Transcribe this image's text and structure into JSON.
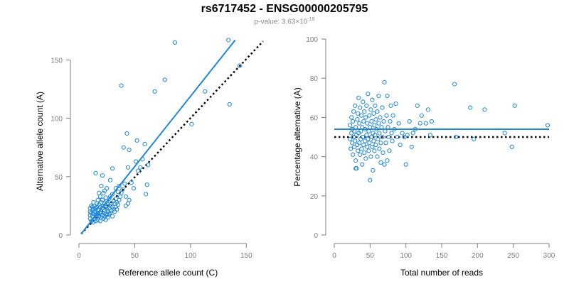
{
  "title": "rs6717452 - ENSG00000205795",
  "pvalue": {
    "prefix": "p-value: 3.63×10",
    "exponent": "-18"
  },
  "colors": {
    "points": "#1e88d8",
    "fit": "#1e88d8",
    "reference": "#000000",
    "axis": "#7f7f7f"
  },
  "chart_data": [
    {
      "type": "scatter",
      "id": "left",
      "xlabel": "Reference allele count (C)",
      "ylabel": "Alternative allele count (A)",
      "xlim": [
        0,
        160
      ],
      "ylim": [
        0,
        160
      ],
      "xticks": [
        0,
        50,
        100,
        150
      ],
      "yticks": [
        0,
        50,
        100,
        150
      ],
      "fit_line": [
        [
          2,
          1
        ],
        [
          140,
          167
        ]
      ],
      "reference_line": [
        [
          2,
          1
        ],
        [
          165,
          166
        ]
      ],
      "points": [
        [
          10,
          14
        ],
        [
          10,
          17
        ],
        [
          10,
          20
        ],
        [
          10,
          23
        ],
        [
          11,
          12
        ],
        [
          11,
          19
        ],
        [
          11,
          25
        ],
        [
          12,
          16
        ],
        [
          12,
          21
        ],
        [
          12,
          24
        ],
        [
          13,
          11
        ],
        [
          13,
          18
        ],
        [
          13,
          22
        ],
        [
          13,
          28
        ],
        [
          14,
          14
        ],
        [
          14,
          20
        ],
        [
          14,
          25
        ],
        [
          15,
          12
        ],
        [
          15,
          17
        ],
        [
          15,
          23
        ],
        [
          15,
          53
        ],
        [
          16,
          15
        ],
        [
          16,
          19
        ],
        [
          16,
          24
        ],
        [
          16,
          27
        ],
        [
          17,
          13
        ],
        [
          17,
          18
        ],
        [
          17,
          22
        ],
        [
          17,
          30
        ],
        [
          18,
          16
        ],
        [
          18,
          21
        ],
        [
          18,
          26
        ],
        [
          18,
          36
        ],
        [
          19,
          12
        ],
        [
          19,
          19
        ],
        [
          19,
          24
        ],
        [
          19,
          33
        ],
        [
          20,
          15
        ],
        [
          20,
          20
        ],
        [
          20,
          28
        ],
        [
          20,
          42
        ],
        [
          21,
          17
        ],
        [
          21,
          23
        ],
        [
          21,
          30
        ],
        [
          21,
          51
        ],
        [
          22,
          14
        ],
        [
          22,
          19
        ],
        [
          22,
          25
        ],
        [
          22,
          36
        ],
        [
          23,
          16
        ],
        [
          23,
          21
        ],
        [
          23,
          27
        ],
        [
          23,
          38
        ],
        [
          24,
          13
        ],
        [
          24,
          18
        ],
        [
          24,
          24
        ],
        [
          24,
          32
        ],
        [
          25,
          17
        ],
        [
          25,
          22
        ],
        [
          25,
          29
        ],
        [
          25,
          40
        ],
        [
          26,
          15
        ],
        [
          26,
          20
        ],
        [
          26,
          26
        ],
        [
          27,
          18
        ],
        [
          27,
          23
        ],
        [
          27,
          31
        ],
        [
          28,
          19
        ],
        [
          28,
          25
        ],
        [
          28,
          33
        ],
        [
          29,
          21
        ],
        [
          29,
          27
        ],
        [
          30,
          16
        ],
        [
          30,
          24
        ],
        [
          30,
          35
        ],
        [
          31,
          22
        ],
        [
          31,
          29
        ],
        [
          32,
          20
        ],
        [
          32,
          27
        ],
        [
          33,
          24
        ],
        [
          33,
          31
        ],
        [
          34,
          22
        ],
        [
          34,
          28
        ],
        [
          35,
          26
        ],
        [
          35,
          37
        ],
        [
          36,
          30
        ],
        [
          36,
          42
        ],
        [
          37,
          33
        ],
        [
          38,
          36
        ],
        [
          38,
          128
        ],
        [
          39,
          39
        ],
        [
          40,
          75
        ],
        [
          41,
          44
        ],
        [
          42,
          33
        ],
        [
          42,
          25
        ],
        [
          43,
          87
        ],
        [
          44,
          27
        ],
        [
          44,
          58
        ],
        [
          45,
          30
        ],
        [
          45,
          73
        ],
        [
          47,
          45
        ],
        [
          49,
          40
        ],
        [
          51,
          63
        ],
        [
          52,
          81
        ],
        [
          53,
          55
        ],
        [
          55,
          58
        ],
        [
          57,
          65
        ],
        [
          59,
          78
        ],
        [
          60,
          35
        ],
        [
          61,
          43
        ],
        [
          62,
          60
        ],
        [
          68,
          123
        ],
        [
          77,
          133
        ],
        [
          86,
          165
        ],
        [
          101,
          95
        ],
        [
          113,
          123
        ],
        [
          134,
          167
        ],
        [
          135,
          112
        ],
        [
          144,
          145
        ],
        [
          28,
          47
        ],
        [
          30,
          57
        ],
        [
          33,
          40
        ]
      ]
    },
    {
      "type": "scatter",
      "id": "right",
      "xlabel": "Total number of reads",
      "ylabel": "Percentage alternative (A)",
      "xlim": [
        0,
        300
      ],
      "ylim": [
        0,
        100
      ],
      "xticks": [
        0,
        50,
        100,
        150,
        200,
        250,
        300
      ],
      "yticks": [
        0,
        20,
        40,
        60,
        80,
        100
      ],
      "fit_line": [
        [
          0,
          54
        ],
        [
          300,
          54
        ]
      ],
      "reference_line": [
        [
          0,
          50
        ],
        [
          300,
          50
        ]
      ],
      "points": [
        [
          22,
          49
        ],
        [
          22,
          56
        ],
        [
          23,
          44
        ],
        [
          24,
          52
        ],
        [
          24,
          60
        ],
        [
          25,
          47
        ],
        [
          25,
          54
        ],
        [
          26,
          41
        ],
        [
          26,
          58
        ],
        [
          27,
          50
        ],
        [
          27,
          63
        ],
        [
          28,
          45
        ],
        [
          28,
          53
        ],
        [
          29,
          48
        ],
        [
          29,
          66
        ],
        [
          30,
          38
        ],
        [
          30,
          55
        ],
        [
          31,
          51
        ],
        [
          31,
          34
        ],
        [
          32,
          46
        ],
        [
          32,
          59
        ],
        [
          33,
          43
        ],
        [
          33,
          62
        ],
        [
          34,
          52
        ],
        [
          34,
          70
        ],
        [
          35,
          47
        ],
        [
          35,
          57
        ],
        [
          36,
          41
        ],
        [
          36,
          65
        ],
        [
          37,
          53
        ],
        [
          37,
          49
        ],
        [
          38,
          44
        ],
        [
          38,
          61
        ],
        [
          39,
          55
        ],
        [
          39,
          36
        ],
        [
          40,
          50
        ],
        [
          40,
          68
        ],
        [
          41,
          46
        ],
        [
          41,
          58
        ],
        [
          42,
          42
        ],
        [
          42,
          63
        ],
        [
          43,
          54
        ],
        [
          43,
          48
        ],
        [
          44,
          60
        ],
        [
          44,
          39
        ],
        [
          45,
          51
        ],
        [
          45,
          66
        ],
        [
          46,
          45
        ],
        [
          46,
          57
        ],
        [
          47,
          49
        ],
        [
          47,
          72
        ],
        [
          48,
          53
        ],
        [
          48,
          43
        ],
        [
          49,
          61
        ],
        [
          49,
          47
        ],
        [
          50,
          55
        ],
        [
          50,
          28
        ],
        [
          51,
          40
        ],
        [
          51,
          64
        ],
        [
          52,
          50
        ],
        [
          52,
          58
        ],
        [
          53,
          45
        ],
        [
          53,
          69
        ],
        [
          54,
          52
        ],
        [
          54,
          33
        ],
        [
          55,
          48
        ],
        [
          55,
          62
        ],
        [
          56,
          56
        ],
        [
          56,
          43
        ],
        [
          57,
          51
        ],
        [
          57,
          66
        ],
        [
          58,
          46
        ],
        [
          58,
          59
        ],
        [
          59,
          54
        ],
        [
          60,
          40
        ],
        [
          60,
          63
        ],
        [
          61,
          49
        ],
        [
          62,
          57
        ],
        [
          62,
          71
        ],
        [
          63,
          44
        ],
        [
          63,
          52
        ],
        [
          64,
          60
        ],
        [
          65,
          47
        ],
        [
          65,
          37
        ],
        [
          66,
          55
        ],
        [
          67,
          50
        ],
        [
          67,
          65
        ],
        [
          68,
          42
        ],
        [
          69,
          58
        ],
        [
          70,
          36
        ],
        [
          70,
          78
        ],
        [
          71,
          53
        ],
        [
          72,
          47
        ],
        [
          73,
          61
        ],
        [
          74,
          38
        ],
        [
          74,
          71
        ],
        [
          75,
          55
        ],
        [
          76,
          50
        ],
        [
          77,
          43
        ],
        [
          78,
          58
        ],
        [
          79,
          66
        ],
        [
          80,
          52
        ],
        [
          81,
          48
        ],
        [
          82,
          61
        ],
        [
          84,
          54
        ],
        [
          86,
          67
        ],
        [
          88,
          50
        ],
        [
          90,
          57
        ],
        [
          92,
          46
        ],
        [
          95,
          52
        ],
        [
          98,
          50
        ],
        [
          100,
          36
        ],
        [
          102,
          51
        ],
        [
          105,
          58
        ],
        [
          108,
          45
        ],
        [
          110,
          52
        ],
        [
          113,
          54
        ],
        [
          116,
          66
        ],
        [
          120,
          57
        ],
        [
          122,
          61
        ],
        [
          128,
          57
        ],
        [
          131,
          64
        ],
        [
          134,
          51
        ],
        [
          136,
          58
        ],
        [
          168,
          77
        ],
        [
          170,
          50
        ],
        [
          190,
          65
        ],
        [
          195,
          49
        ],
        [
          210,
          64
        ],
        [
          238,
          52
        ],
        [
          248,
          45
        ],
        [
          252,
          66
        ],
        [
          298,
          56
        ],
        [
          30,
          34
        ]
      ]
    }
  ]
}
